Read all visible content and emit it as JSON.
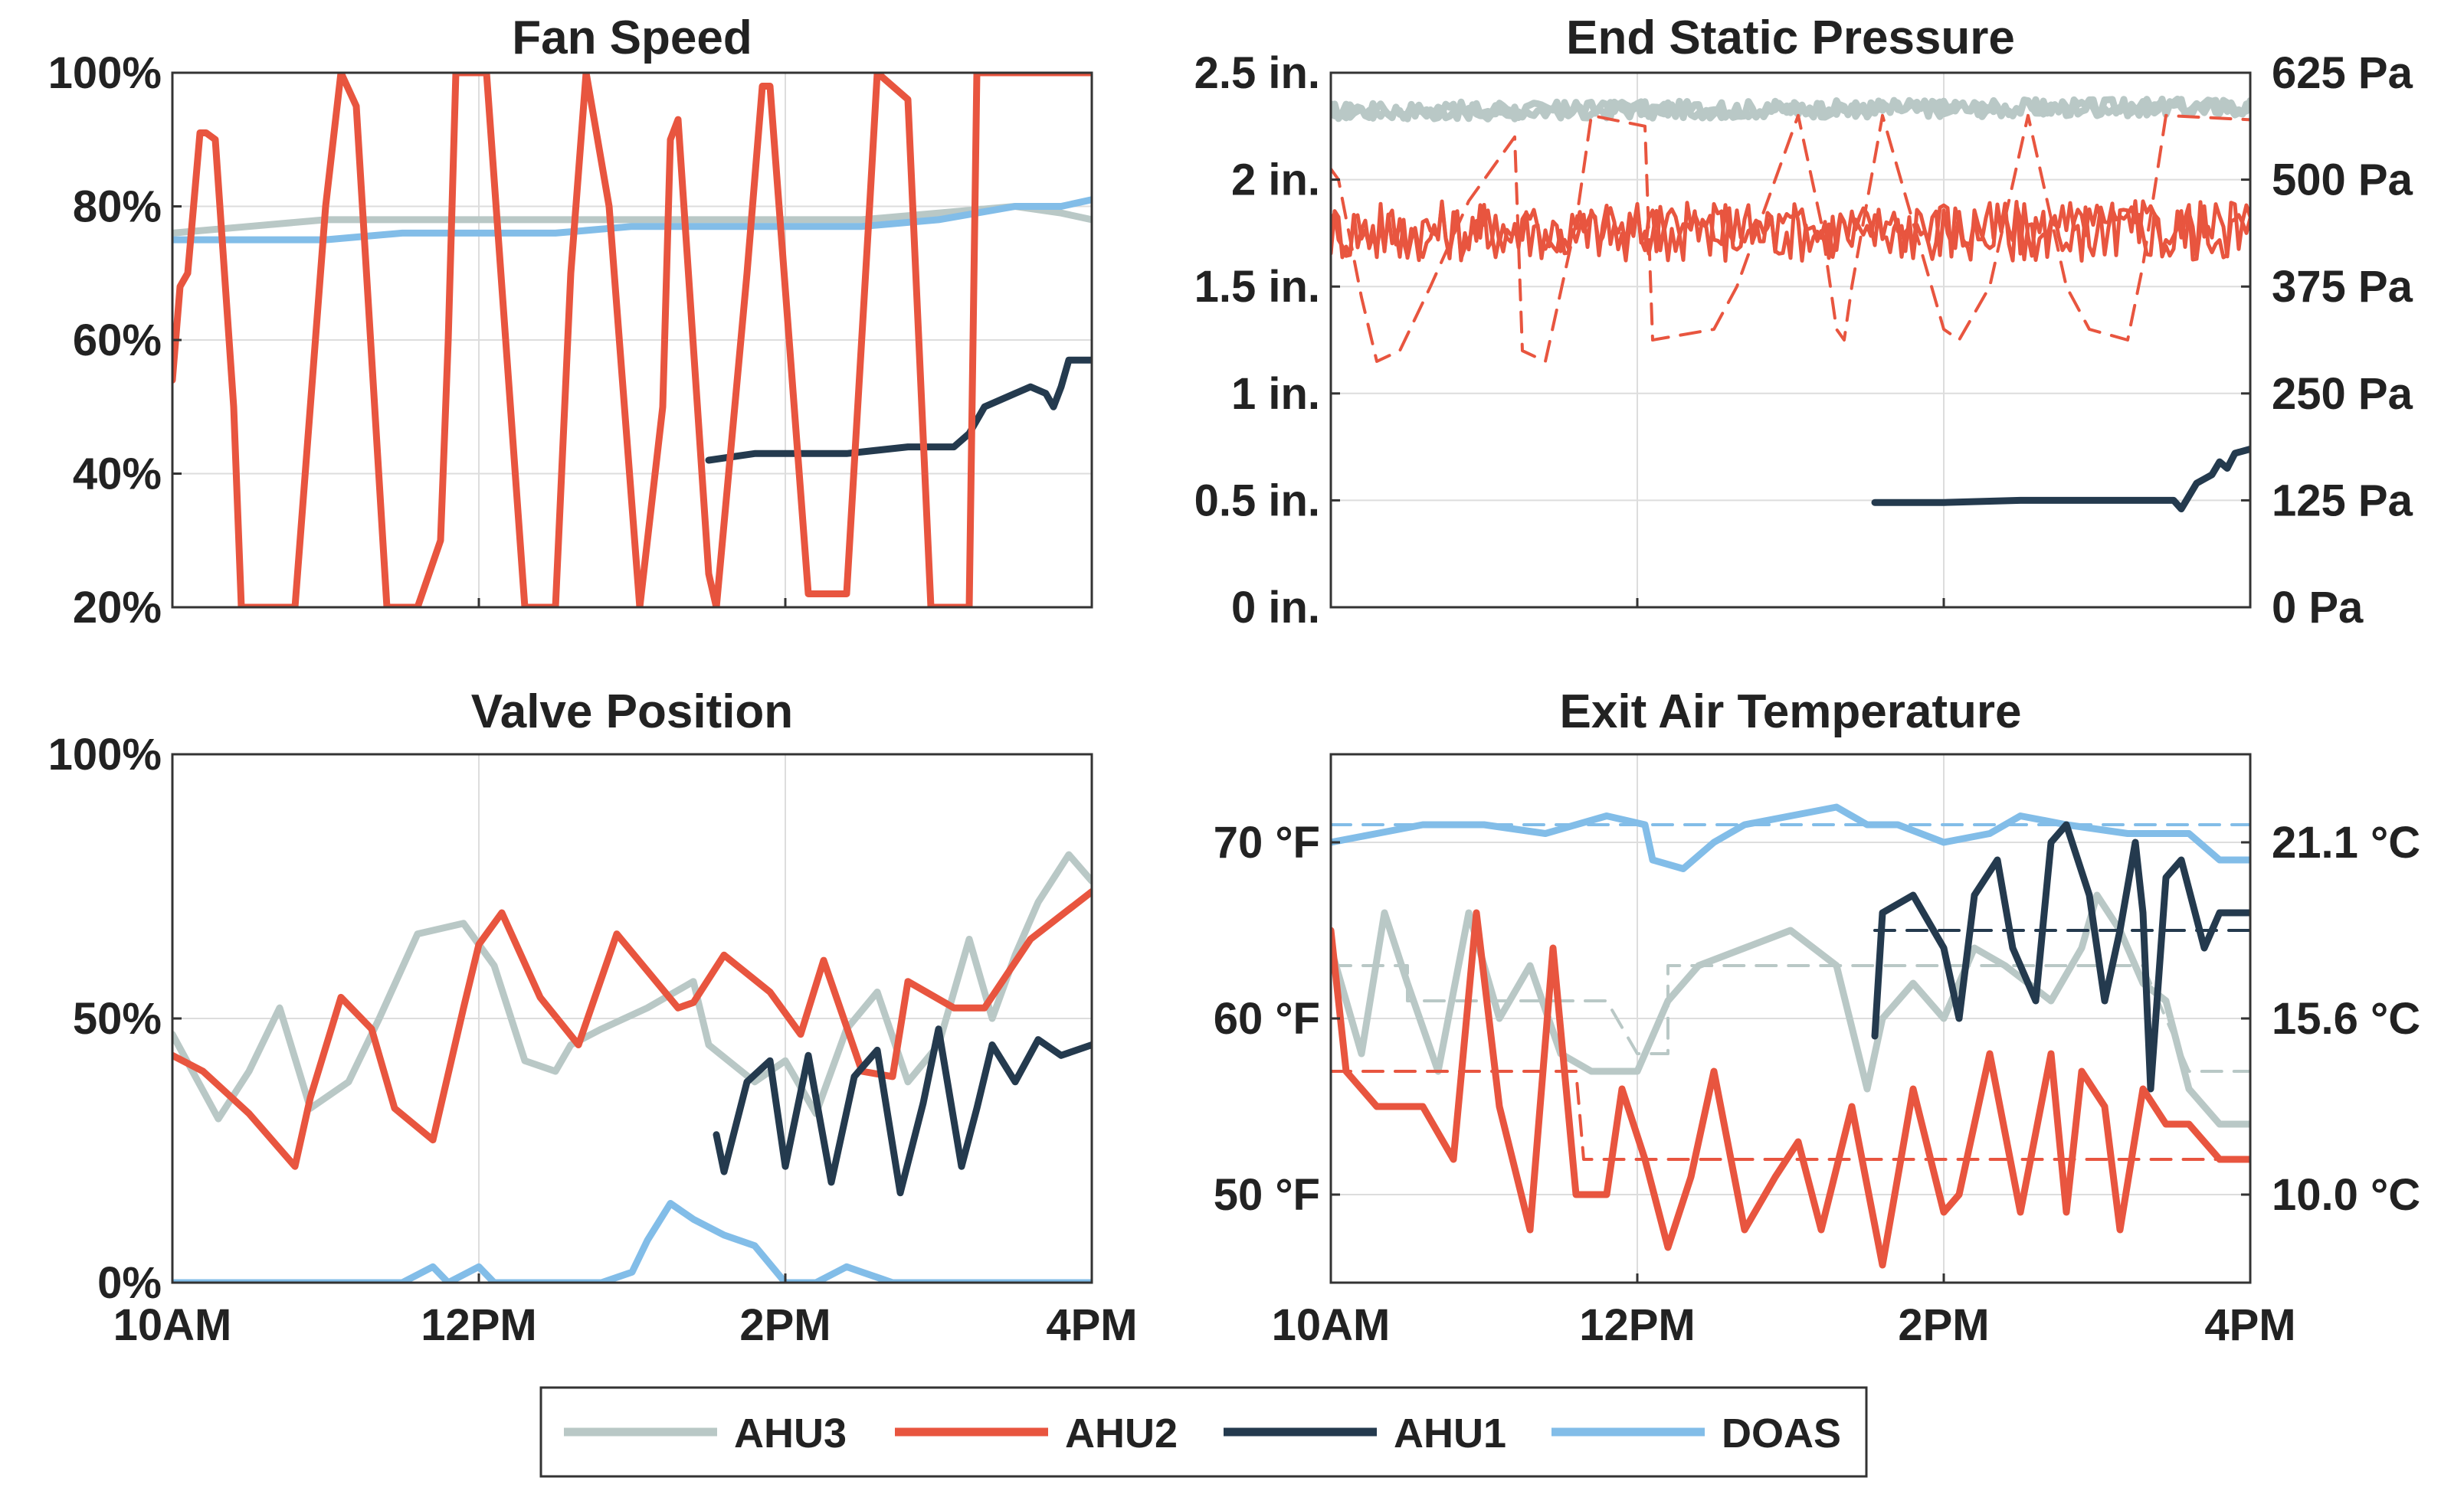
{
  "colors": {
    "AHU3": "#b9c8c6",
    "AHU2": "#e8553f",
    "AHU1": "#243a4e",
    "DOAS": "#82bde8",
    "grid": "#dddddd",
    "axis": "#333333"
  },
  "legend": [
    "AHU3",
    "AHU2",
    "AHU1",
    "DOAS"
  ],
  "chart_data": [
    {
      "id": "fan",
      "type": "line",
      "title": "Fan Speed",
      "xlim": [
        10,
        16
      ],
      "ylim": [
        20,
        100
      ],
      "xticks": [
        10,
        12,
        14,
        16
      ],
      "xtick_labels": [
        "",
        "",
        "",
        ""
      ],
      "yticks": [
        20,
        40,
        60,
        80,
        100
      ],
      "ytick_labels": [
        "20%",
        "40%",
        "60%",
        "80%",
        "100%"
      ],
      "series": [
        {
          "name": "AHU3",
          "x": [
            10,
            10.5,
            11,
            11.5,
            12,
            12.5,
            13,
            13.5,
            14,
            14.5,
            15,
            15.5,
            15.8,
            16
          ],
          "y": [
            76,
            77,
            78,
            78,
            78,
            78,
            78,
            78,
            78,
            78,
            79,
            80,
            79,
            78
          ]
        },
        {
          "name": "DOAS",
          "x": [
            10,
            10.5,
            11,
            11.5,
            12,
            12.5,
            13,
            13.5,
            14,
            14.5,
            15,
            15.5,
            15.8,
            16
          ],
          "y": [
            75,
            75,
            75,
            76,
            76,
            76,
            77,
            77,
            77,
            77,
            78,
            80,
            80,
            81
          ]
        },
        {
          "name": "AHU1",
          "x": [
            13.5,
            13.8,
            14,
            14.4,
            14.8,
            15.1,
            15.2,
            15.3,
            15.4,
            15.5,
            15.6,
            15.7,
            15.75,
            15.8,
            15.85,
            16
          ],
          "y": [
            42,
            43,
            43,
            43,
            44,
            44,
            46,
            50,
            51,
            52,
            53,
            52,
            50,
            53,
            57,
            57
          ]
        },
        {
          "name": "AHU2",
          "x": [
            10,
            10.05,
            10.1,
            10.18,
            10.22,
            10.28,
            10.4,
            10.45,
            10.6,
            10.8,
            11,
            11.1,
            11.2,
            11.4,
            11.6,
            11.75,
            11.8,
            11.85,
            12.05,
            12.3,
            12.5,
            12.6,
            12.7,
            12.85,
            13.05,
            13.2,
            13.25,
            13.3,
            13.5,
            13.55,
            13.75,
            13.85,
            13.9,
            14.15,
            14.4,
            14.55,
            14.6,
            14.8,
            14.95,
            15.2,
            15.25,
            16
          ],
          "y": [
            54,
            68,
            70,
            91,
            91,
            90,
            50,
            20,
            20,
            20,
            80,
            100,
            95,
            20,
            20,
            30,
            60,
            100,
            100,
            20,
            20,
            70,
            100,
            80,
            20,
            50,
            90,
            93,
            25,
            20,
            70,
            98,
            98,
            22,
            22,
            80,
            100,
            96,
            20,
            20,
            100,
            100
          ]
        }
      ]
    },
    {
      "id": "pressure",
      "type": "line",
      "title": "End Static Pressure",
      "xlim": [
        10,
        16
      ],
      "ylim": [
        0,
        2.5
      ],
      "xticks": [
        10,
        12,
        14,
        16
      ],
      "xtick_labels": [
        "",
        "",
        "",
        ""
      ],
      "yticks": [
        0,
        0.5,
        1,
        1.5,
        2,
        2.5
      ],
      "ytick_labels": [
        "0 in.",
        "0.5 in.",
        "1 in.",
        "1.5 in.",
        "2 in.",
        "2.5 in."
      ],
      "y2ticks": [
        0,
        0.5,
        1,
        1.5,
        2,
        2.5
      ],
      "y2tick_labels": [
        "0 Pa",
        "125 Pa",
        "250 Pa",
        "375 Pa",
        "500 Pa",
        "625 Pa"
      ],
      "series": [
        {
          "name": "AHU3",
          "x": [
            10,
            16
          ],
          "y": [
            2.32,
            2.34
          ],
          "noise": 0.04,
          "lines": 2
        },
        {
          "name": "AHU2",
          "x": [
            10,
            16
          ],
          "y": [
            1.76,
            1.76
          ],
          "noise": 0.14,
          "lines": 2
        },
        {
          "name": "AHU2 setpoint",
          "dashed": true,
          "x": [
            10,
            10.05,
            10.2,
            10.3,
            10.45,
            10.65,
            10.9,
            11.2,
            11.25,
            11.4,
            11.6,
            11.7,
            12.05,
            12.1,
            12.5,
            12.65,
            13.05,
            13.2,
            13.3,
            13.35,
            13.4,
            13.6,
            13.8,
            14,
            14.1,
            14.3,
            14.55,
            14.8,
            14.95,
            15.2,
            15.3,
            15.45,
            16
          ],
          "y": [
            2.05,
            2.0,
            1.45,
            1.15,
            1.2,
            1.5,
            1.9,
            2.2,
            1.2,
            1.15,
            1.8,
            2.3,
            2.25,
            1.25,
            1.3,
            1.5,
            2.3,
            1.8,
            1.3,
            1.25,
            1.5,
            2.3,
            1.8,
            1.3,
            1.25,
            1.5,
            2.3,
            1.5,
            1.3,
            1.25,
            1.6,
            2.3,
            2.28
          ]
        },
        {
          "name": "AHU1",
          "x": [
            13.55,
            14,
            14.5,
            15,
            15.5,
            15.55,
            15.6,
            15.65,
            15.7,
            15.75,
            15.8,
            15.85,
            15.9,
            16
          ],
          "y": [
            0.49,
            0.49,
            0.5,
            0.5,
            0.5,
            0.46,
            0.52,
            0.58,
            0.6,
            0.62,
            0.68,
            0.65,
            0.72,
            0.74
          ]
        }
      ]
    },
    {
      "id": "valve",
      "type": "line",
      "title": "Valve Position",
      "xlim": [
        10,
        16
      ],
      "ylim": [
        0,
        100
      ],
      "xticks": [
        10,
        12,
        14,
        16
      ],
      "xtick_labels": [
        "10AM",
        "12PM",
        "2PM",
        "4PM"
      ],
      "yticks": [
        0,
        50,
        100
      ],
      "ytick_labels": [
        "0%",
        "50%",
        "100%"
      ],
      "series": [
        {
          "name": "AHU3",
          "x": [
            10,
            10.3,
            10.5,
            10.7,
            10.9,
            11.15,
            11.35,
            11.6,
            11.9,
            12.1,
            12.3,
            12.5,
            12.6,
            12.8,
            13.1,
            13.4,
            13.5,
            13.8,
            14,
            14.2,
            14.4,
            14.6,
            14.8,
            15,
            15.2,
            15.35,
            15.5,
            15.65,
            15.85,
            16
          ],
          "y": [
            47,
            31,
            40,
            52,
            33,
            38,
            50,
            66,
            68,
            60,
            42,
            40,
            45,
            48,
            52,
            57,
            45,
            38,
            42,
            32,
            48,
            55,
            38,
            45,
            65,
            50,
            62,
            72,
            81,
            76
          ]
        },
        {
          "name": "AHU2",
          "x": [
            10,
            10.2,
            10.5,
            10.8,
            10.9,
            11.1,
            11.3,
            11.45,
            11.7,
            11.9,
            12,
            12.15,
            12.4,
            12.65,
            12.9,
            13.3,
            13.4,
            13.6,
            13.9,
            14.1,
            14.25,
            14.5,
            14.7,
            14.8,
            15.1,
            15.3,
            15.6,
            16
          ],
          "y": [
            43,
            40,
            32,
            22,
            35,
            54,
            48,
            33,
            27,
            52,
            64,
            70,
            54,
            45,
            66,
            52,
            53,
            62,
            55,
            47,
            61,
            40,
            39,
            57,
            52,
            52,
            65,
            74
          ]
        },
        {
          "name": "AHU1",
          "x": [
            13.55,
            13.6,
            13.75,
            13.9,
            14,
            14.15,
            14.3,
            14.45,
            14.6,
            14.75,
            14.9,
            15,
            15.15,
            15.25,
            15.35,
            15.5,
            15.65,
            15.8,
            16
          ],
          "y": [
            28,
            21,
            38,
            42,
            22,
            43,
            19,
            39,
            44,
            17,
            34,
            48,
            22,
            33,
            45,
            38,
            46,
            43,
            45
          ]
        },
        {
          "name": "DOAS",
          "x": [
            10,
            11.5,
            11.7,
            11.8,
            12,
            12.1,
            12.8,
            13,
            13.1,
            13.25,
            13.4,
            13.6,
            13.8,
            14,
            14.2,
            14.4,
            14.5,
            14.7,
            16
          ],
          "y": [
            0,
            0,
            3,
            0,
            3,
            0,
            0,
            2,
            8,
            15,
            12,
            9,
            7,
            0,
            0,
            3,
            2,
            0,
            0
          ]
        }
      ]
    },
    {
      "id": "temp",
      "type": "line",
      "title": "Exit Air Temperature",
      "xlim": [
        10,
        16
      ],
      "ylim": [
        45,
        75
      ],
      "xticks": [
        10,
        12,
        14,
        16
      ],
      "xtick_labels": [
        "10AM",
        "12PM",
        "2PM",
        "4PM"
      ],
      "yticks": [
        50,
        60,
        70
      ],
      "ytick_labels": [
        "50 °F",
        "60 °F",
        "70 °F"
      ],
      "y2ticks": [
        50,
        60,
        70
      ],
      "y2tick_labels": [
        "10.0 °C",
        "15.6 °C",
        "21.1 °C"
      ],
      "series": [
        {
          "name": "DOAS",
          "x": [
            10,
            10.3,
            10.6,
            11,
            11.4,
            11.8,
            12.05,
            12.1,
            12.3,
            12.5,
            12.7,
            13,
            13.3,
            13.5,
            13.7,
            14,
            14.3,
            14.5,
            14.8,
            15.2,
            15.6,
            15.8,
            16
          ],
          "y": [
            70,
            70.5,
            71,
            71,
            70.5,
            71.5,
            71,
            69,
            68.5,
            70,
            71,
            71.5,
            72,
            71,
            71,
            70,
            70.5,
            71.5,
            71,
            70.5,
            70.5,
            69,
            69
          ]
        },
        {
          "name": "DOAS setpoint",
          "dashed": true,
          "x": [
            10,
            13.5,
            16
          ],
          "y": [
            71,
            71,
            71
          ]
        },
        {
          "name": "AHU3",
          "x": [
            10,
            10.2,
            10.35,
            10.5,
            10.7,
            10.9,
            11.1,
            11.3,
            11.5,
            11.7,
            12,
            12.2,
            12.4,
            12.7,
            13,
            13.3,
            13.5,
            13.6,
            13.8,
            14,
            14.2,
            14.4,
            14.7,
            14.9,
            15,
            15.15,
            15.3,
            15.45,
            15.6,
            15.8,
            16
          ],
          "y": [
            64,
            58,
            66,
            62,
            57,
            66,
            60,
            63,
            58,
            57,
            57,
            61,
            63,
            64,
            65,
            63,
            56,
            60,
            62,
            60,
            64,
            63,
            61,
            64,
            67,
            65,
            62,
            61,
            56,
            54,
            54
          ]
        },
        {
          "name": "AHU3 setpoint",
          "dashed": true,
          "x": [
            10,
            10.5,
            10.5,
            11.8,
            12,
            12.2,
            12.2,
            15.3,
            15.6,
            16
          ],
          "y": [
            63,
            63,
            61,
            61,
            58,
            58,
            63,
            63,
            57,
            57
          ]
        },
        {
          "name": "AHU1",
          "x": [
            13.55,
            13.6,
            13.8,
            14,
            14.1,
            14.2,
            14.35,
            14.45,
            14.6,
            14.7,
            14.8,
            14.95,
            15.05,
            15.15,
            15.25,
            15.3,
            15.35,
            15.45,
            15.55,
            15.7,
            15.8,
            16
          ],
          "y": [
            59,
            66,
            67,
            64,
            60,
            67,
            69,
            64,
            61,
            70,
            71,
            67,
            61,
            65,
            70,
            66,
            56,
            68,
            69,
            64,
            66,
            66
          ]
        },
        {
          "name": "AHU1 setpoint",
          "dashed": true,
          "x": [
            13.55,
            16
          ],
          "y": [
            65,
            65
          ]
        },
        {
          "name": "AHU2",
          "x": [
            10,
            10.1,
            10.3,
            10.6,
            10.8,
            10.95,
            11.1,
            11.3,
            11.45,
            11.6,
            11.8,
            11.9,
            12.05,
            12.2,
            12.35,
            12.5,
            12.7,
            12.9,
            13.05,
            13.2,
            13.4,
            13.6,
            13.8,
            14,
            14.1,
            14.3,
            14.5,
            14.7,
            14.8,
            14.9,
            15.05,
            15.15,
            15.3,
            15.45,
            15.6,
            15.8,
            16
          ],
          "y": [
            65,
            57,
            55,
            55,
            52,
            66,
            55,
            48,
            64,
            50,
            50,
            56,
            52,
            47,
            51,
            57,
            48,
            51,
            53,
            48,
            55,
            46,
            56,
            49,
            50,
            58,
            49,
            58,
            49,
            57,
            55,
            48,
            56,
            54,
            54,
            52,
            52
          ]
        },
        {
          "name": "AHU2 setpoint",
          "dashed": true,
          "x": [
            10,
            11.6,
            11.65,
            16
          ],
          "y": [
            57,
            57,
            52,
            52
          ]
        }
      ]
    }
  ]
}
